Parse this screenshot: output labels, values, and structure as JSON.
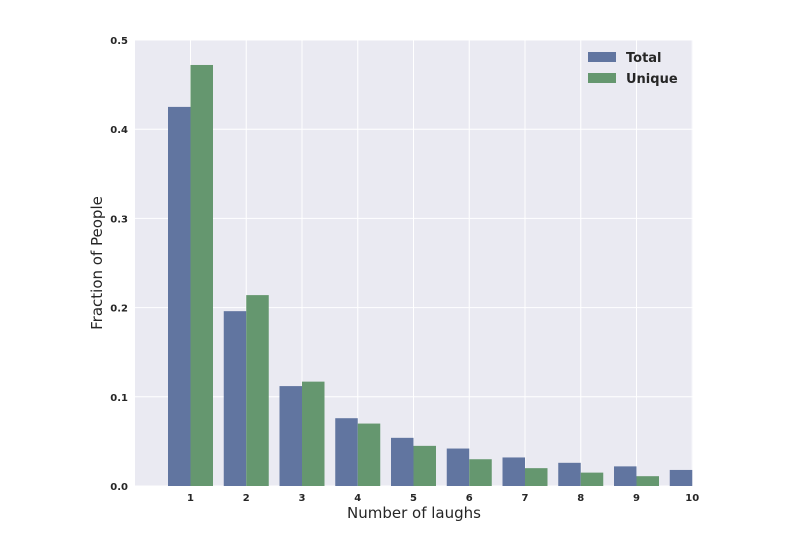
{
  "chart_data": {
    "type": "bar",
    "categories": [
      "1",
      "2",
      "3",
      "4",
      "5",
      "6",
      "7",
      "8",
      "9",
      "10"
    ],
    "series": [
      {
        "name": "Total",
        "color": "#6175a0",
        "values": [
          0.425,
          0.196,
          0.112,
          0.076,
          0.054,
          0.042,
          0.032,
          0.026,
          0.022,
          0.018
        ]
      },
      {
        "name": "Unique",
        "color": "#65976f",
        "values": [
          0.472,
          0.214,
          0.117,
          0.07,
          0.045,
          0.03,
          0.02,
          0.015,
          0.011,
          0.0
        ]
      }
    ],
    "title": "",
    "xlabel": "Number of laughs",
    "ylabel": "Fraction of People",
    "ylim": [
      0,
      0.5
    ],
    "yticks": [
      "0.0",
      "0.1",
      "0.2",
      "0.3",
      "0.4",
      "0.5"
    ],
    "grid": true,
    "legend": "top-right",
    "background_color": "#eaeaf2"
  }
}
